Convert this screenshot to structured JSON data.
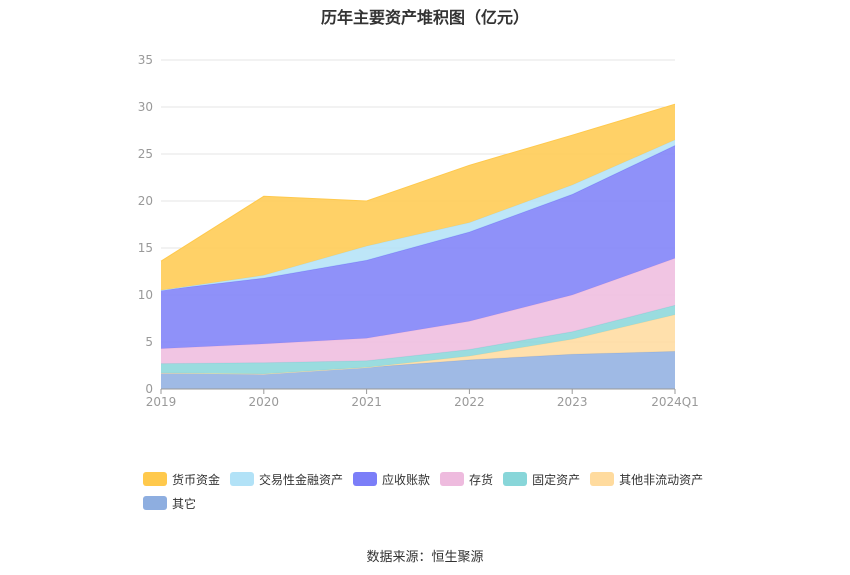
{
  "chart_data": {
    "type": "area",
    "stacked": true,
    "title": "历年主要资产堆积图（亿元）",
    "categories": [
      "2019",
      "2020",
      "2021",
      "2022",
      "2023",
      "2024Q1"
    ],
    "ylim": [
      0,
      35
    ],
    "yticks": [
      "0",
      "5",
      "10",
      "15",
      "20",
      "25",
      "30",
      "35"
    ],
    "grid": true,
    "legend_position": "bottom",
    "series": [
      {
        "name": "其它",
        "color": "#8eaee0",
        "values": [
          1.7,
          1.6,
          2.3,
          3.1,
          3.7,
          4.0
        ]
      },
      {
        "name": "其他非流动资产",
        "color": "#ffdb9e",
        "values": [
          0.0,
          0.0,
          0.0,
          0.4,
          1.6,
          3.9
        ]
      },
      {
        "name": "固定资产",
        "color": "#88d6d9",
        "values": [
          1.0,
          1.2,
          0.7,
          0.7,
          0.8,
          1.0
        ]
      },
      {
        "name": "存货",
        "color": "#eebbde",
        "values": [
          1.6,
          2.0,
          2.4,
          3.0,
          3.9,
          5.0
        ]
      },
      {
        "name": "应收账款",
        "color": "#7b7ef8",
        "values": [
          6.2,
          7.0,
          8.3,
          9.5,
          10.7,
          12.0
        ]
      },
      {
        "name": "交易性金融资产",
        "color": "#b2e2f7",
        "values": [
          0.0,
          0.3,
          1.5,
          1.0,
          1.0,
          0.6
        ]
      },
      {
        "name": "货币资金",
        "color": "#ffc94c",
        "values": [
          3.1,
          8.4,
          4.8,
          6.1,
          5.3,
          3.8
        ]
      }
    ]
  },
  "legend_order": [
    "货币资金",
    "交易性金融资产",
    "应收账款",
    "存货",
    "固定资产",
    "其他非流动资产",
    "其它"
  ],
  "source": "数据来源：恒生聚源"
}
